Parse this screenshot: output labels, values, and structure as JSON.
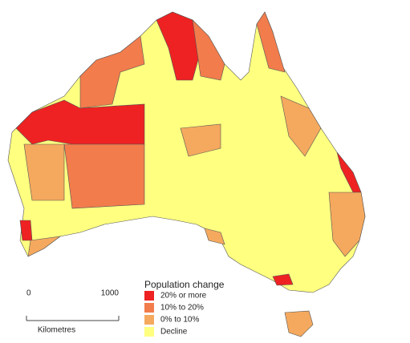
{
  "legend": {
    "title": "Population change",
    "items": [
      {
        "label": "20% or more",
        "color": "#ee2222"
      },
      {
        "label": "10% to 20%",
        "color": "#f27c4c"
      },
      {
        "label": "0% to 10%",
        "color": "#f5a95e"
      },
      {
        "label": "Decline",
        "color": "#ffff80"
      }
    ]
  },
  "scale_bar": {
    "ticks": [
      0,
      1000
    ],
    "unit": "Kilometres"
  }
}
